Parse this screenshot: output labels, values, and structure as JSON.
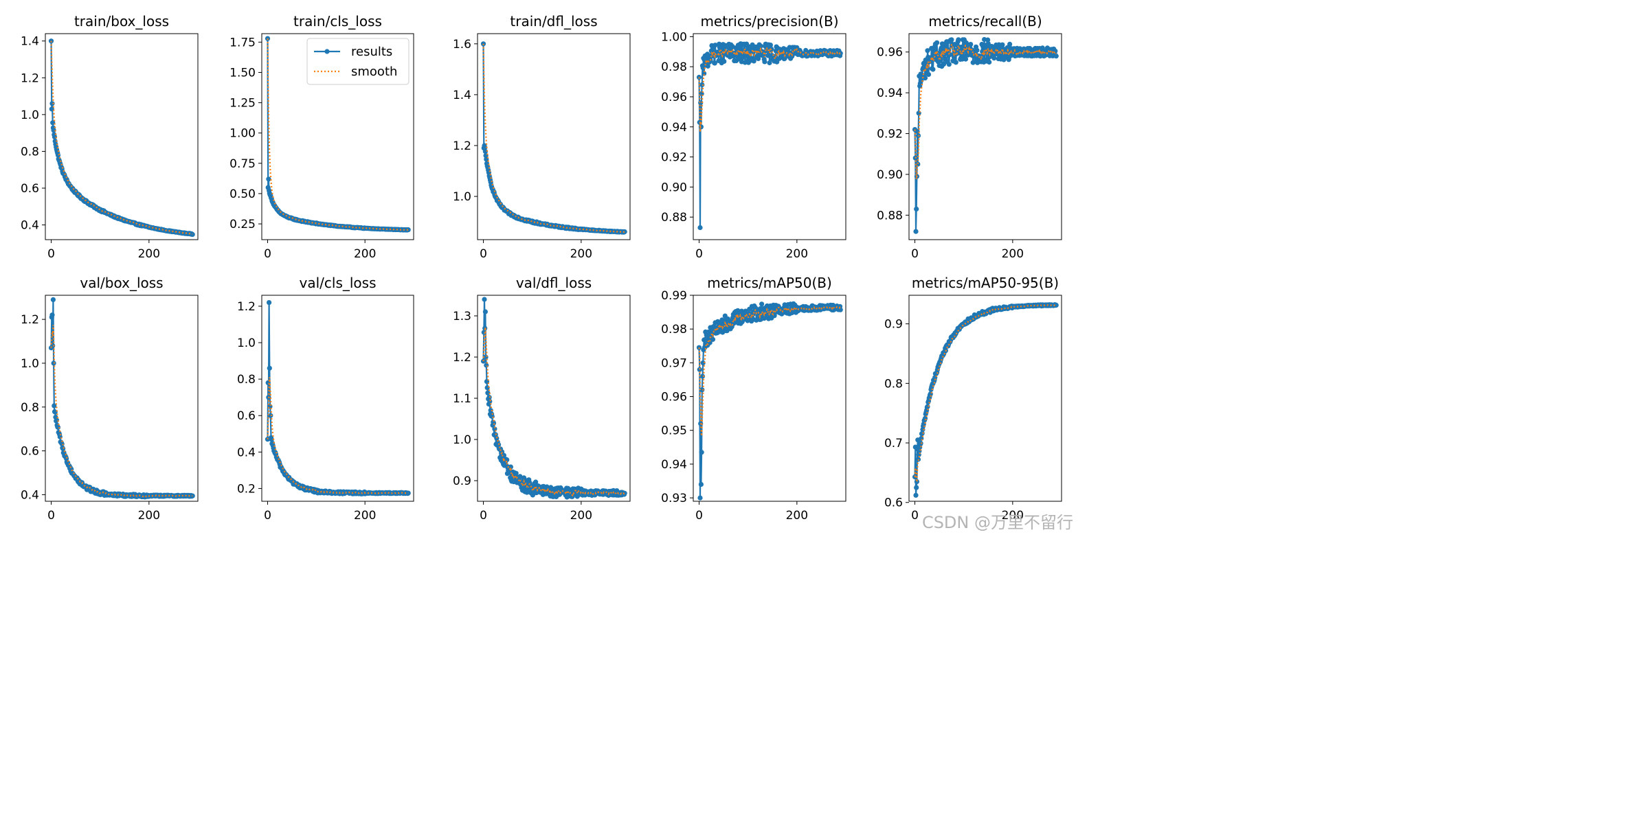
{
  "figure": {
    "x_ticks": [
      0,
      200
    ]
  },
  "legend": {
    "results_label": "results",
    "smooth_label": "smooth"
  },
  "colors": {
    "results": "#1f77b4",
    "smooth": "#ff7f0e"
  },
  "watermark": "CSDN @万里不留行",
  "chart_data": [
    {
      "type": "line",
      "title": "train/box_loss",
      "xlim": [
        -12,
        300
      ],
      "ylim": [
        0.32,
        1.44
      ],
      "yticks": [
        0.4,
        0.6,
        0.8,
        1.0,
        1.2,
        1.4
      ],
      "ytick_labels": [
        "0.4",
        "0.6",
        "0.8",
        "1.0",
        "1.2",
        "1.4"
      ],
      "curve": {
        "kind": "decay",
        "end": 0.35,
        "a": 0.33,
        "tau": 14,
        "b": 0.38,
        "tau2": 120,
        "noise": 0.004
      },
      "starts": [
        1.4,
        1.03,
        1.06
      ],
      "legend": false
    },
    {
      "type": "line",
      "title": "train/cls_loss",
      "xlim": [
        -12,
        300
      ],
      "ylim": [
        0.12,
        1.82
      ],
      "yticks": [
        0.25,
        0.5,
        0.75,
        1.0,
        1.25,
        1.5,
        1.75
      ],
      "ytick_labels": [
        "0.25",
        "0.50",
        "0.75",
        "1.00",
        "1.25",
        "1.50",
        "1.75"
      ],
      "curve": {
        "kind": "decay",
        "end": 0.2,
        "a": 0.23,
        "tau": 12,
        "b": 0.16,
        "tau2": 110,
        "noise": 0.003
      },
      "starts": [
        1.78,
        0.55,
        0.62
      ],
      "legend": true
    },
    {
      "type": "line",
      "title": "train/dfl_loss",
      "xlim": [
        -12,
        300
      ],
      "ylim": [
        0.83,
        1.64
      ],
      "yticks": [
        1.0,
        1.2,
        1.4,
        1.6
      ],
      "ytick_labels": [
        "1.0",
        "1.2",
        "1.4",
        "1.6"
      ],
      "curve": {
        "kind": "decay",
        "end": 0.86,
        "a": 0.27,
        "tau": 15,
        "b": 0.12,
        "tau2": 110,
        "noise": 0.003
      },
      "starts": [
        1.6,
        1.19,
        1.2
      ],
      "legend": false
    },
    {
      "type": "line",
      "title": "metrics/precision(B)",
      "xlim": [
        -12,
        300
      ],
      "ylim": [
        0.865,
        1.002
      ],
      "yticks": [
        0.88,
        0.9,
        0.92,
        0.94,
        0.96,
        0.98,
        1.0
      ],
      "ytick_labels": [
        "0.88",
        "0.90",
        "0.92",
        "0.94",
        "0.96",
        "0.98",
        "1.00"
      ],
      "curve": {
        "kind": "rise",
        "end": 0.989,
        "a": 0.03,
        "tau": 8,
        "noise": 0.004
      },
      "starts": [
        0.973,
        0.943,
        0.873,
        0.956,
        0.94,
        0.962,
        0.968
      ],
      "legend": false
    },
    {
      "type": "line",
      "title": "metrics/recall(B)",
      "xlim": [
        -12,
        300
      ],
      "ylim": [
        0.868,
        0.969
      ],
      "yticks": [
        0.88,
        0.9,
        0.92,
        0.94,
        0.96
      ],
      "ytick_labels": [
        "0.88",
        "0.90",
        "0.92",
        "0.94",
        "0.96"
      ],
      "curve": {
        "kind": "rise",
        "end": 0.96,
        "a": 0.03,
        "tau": 15,
        "noise": 0.004
      },
      "starts": [
        0.922,
        0.908,
        0.872,
        0.883,
        0.899,
        0.921,
        0.905,
        0.919,
        0.93
      ],
      "legend": false
    },
    {
      "type": "line",
      "title": "val/box_loss",
      "xlim": [
        -12,
        300
      ],
      "ylim": [
        0.37,
        1.31
      ],
      "yticks": [
        0.4,
        0.6,
        0.8,
        1.0,
        1.2
      ],
      "ytick_labels": [
        "0.4",
        "0.6",
        "0.8",
        "1.0",
        "1.2"
      ],
      "curve": {
        "kind": "decay",
        "end": 0.395,
        "a": 0.5,
        "tau": 28,
        "noise": 0.006
      },
      "starts": [
        1.07,
        1.21,
        1.22,
        1.08,
        1.29,
        1.0
      ],
      "legend": false
    },
    {
      "type": "line",
      "title": "val/cls_loss",
      "xlim": [
        -12,
        300
      ],
      "ylim": [
        0.13,
        1.26
      ],
      "yticks": [
        0.2,
        0.4,
        0.6,
        0.8,
        1.0,
        1.2
      ],
      "ytick_labels": [
        "0.2",
        "0.4",
        "0.6",
        "0.8",
        "1.0",
        "1.2"
      ],
      "curve": {
        "kind": "decay",
        "end": 0.175,
        "a": 0.38,
        "tau": 28,
        "noise": 0.006
      },
      "starts": [
        0.47,
        0.78,
        0.7,
        1.22,
        0.86,
        0.65,
        0.6
      ],
      "legend": false
    },
    {
      "type": "line",
      "title": "val/dfl_loss",
      "xlim": [
        -12,
        300
      ],
      "ylim": [
        0.85,
        1.35
      ],
      "yticks": [
        0.9,
        1.0,
        1.1,
        1.2,
        1.3
      ],
      "ytick_labels": [
        "0.9",
        "1.0",
        "1.1",
        "1.2",
        "1.3"
      ],
      "curve": {
        "kind": "decay",
        "end": 0.87,
        "a": 0.32,
        "tau": 30,
        "noise": 0.012
      },
      "starts": [
        1.19,
        1.26,
        1.34,
        1.27,
        1.31,
        1.2,
        1.18
      ],
      "legend": false
    },
    {
      "type": "line",
      "title": "metrics/mAP50(B)",
      "xlim": [
        -12,
        300
      ],
      "ylim": [
        0.929,
        0.99
      ],
      "yticks": [
        0.93,
        0.94,
        0.95,
        0.96,
        0.97,
        0.98,
        0.99
      ],
      "ytick_labels": [
        "0.93",
        "0.94",
        "0.95",
        "0.96",
        "0.97",
        "0.98",
        "0.99"
      ],
      "curve": {
        "kind": "rise",
        "end": 0.9865,
        "a": 0.012,
        "tau": 60,
        "noise": 0.0015
      },
      "starts": [
        0.9745,
        0.968,
        0.93,
        0.952,
        0.934,
        0.9435,
        0.962,
        0.966,
        0.97
      ],
      "legend": false
    },
    {
      "type": "line",
      "title": "metrics/mAP50-95(B)",
      "xlim": [
        -12,
        300
      ],
      "ylim": [
        0.602,
        0.948
      ],
      "yticks": [
        0.6,
        0.7,
        0.8,
        0.9
      ],
      "ytick_labels": [
        "0.6",
        "0.7",
        "0.8",
        "0.9"
      ],
      "curve": {
        "kind": "rise",
        "end": 0.932,
        "a": 0.3,
        "tau": 45,
        "noise": 0.002
      },
      "starts": [
        0.643,
        0.693,
        0.612,
        0.625,
        0.635,
        0.69,
        0.705
      ],
      "legend": false
    }
  ]
}
